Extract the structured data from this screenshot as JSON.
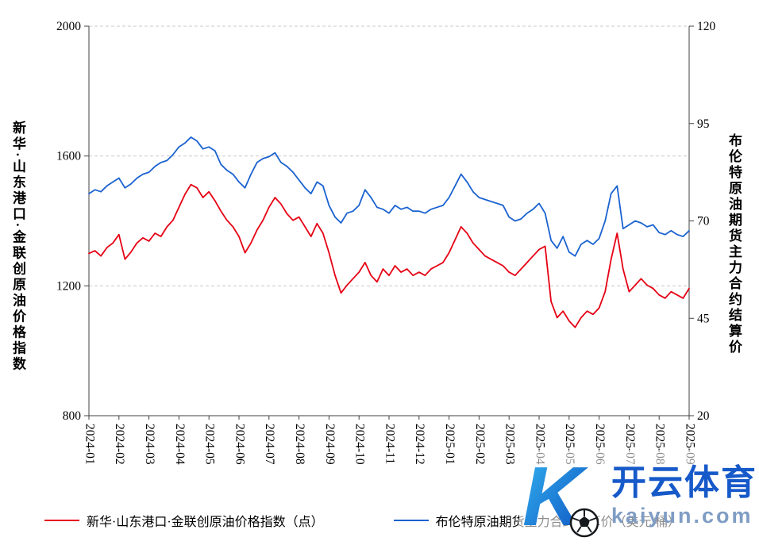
{
  "chart_data": {
    "type": "line",
    "title": "",
    "x_axis": {
      "labels": [
        "2024-01",
        "2024-02",
        "2024-03",
        "2024-04",
        "2024-05",
        "2024-06",
        "2024-07",
        "2024-08",
        "2024-09",
        "2024-10",
        "2024-11",
        "2024-12",
        "2025-01",
        "2025-02",
        "2025-03",
        "2025-04",
        "2025-05",
        "2025-06",
        "2025-07",
        "2025-08",
        "2025-09"
      ]
    },
    "left_axis": {
      "title": "新华·山东港口·金联创原油价格指数",
      "min": 800,
      "max": 2000,
      "ticks": [
        800,
        1200,
        1600,
        2000
      ]
    },
    "right_axis": {
      "title": "布伦特原油期货主力合约结算价",
      "min": 20,
      "max": 120,
      "ticks": [
        20,
        45,
        70,
        95,
        120
      ]
    },
    "grid_values_left": [
      1200,
      1600,
      2000
    ],
    "points_per_month": 5,
    "series": [
      {
        "name": "新华·山东港口·金联创原油价格指数（点）",
        "axis": "left",
        "color": "#e60014",
        "values": [
          1300,
          1308,
          1292,
          1318,
          1332,
          1358,
          1282,
          1304,
          1332,
          1348,
          1338,
          1362,
          1352,
          1382,
          1402,
          1442,
          1482,
          1512,
          1502,
          1472,
          1490,
          1462,
          1430,
          1402,
          1382,
          1352,
          1302,
          1332,
          1372,
          1402,
          1442,
          1472,
          1452,
          1422,
          1402,
          1412,
          1382,
          1352,
          1392,
          1362,
          1302,
          1232,
          1178,
          1202,
          1222,
          1242,
          1272,
          1232,
          1212,
          1252,
          1232,
          1262,
          1242,
          1252,
          1232,
          1242,
          1232,
          1252,
          1262,
          1272,
          1302,
          1342,
          1382,
          1362,
          1332,
          1312,
          1292,
          1282,
          1272,
          1262,
          1242,
          1232,
          1252,
          1272,
          1292,
          1312,
          1322,
          1152,
          1102,
          1122,
          1092,
          1072,
          1102,
          1122,
          1112,
          1132,
          1182,
          1282,
          1362,
          1252,
          1182,
          1202,
          1222,
          1202,
          1192,
          1172,
          1162,
          1182,
          1172,
          1162,
          1192
        ]
      },
      {
        "name": "布伦特原油期货主力合约结算价（美元/桶）",
        "axis": "right",
        "color": "#1a62d0",
        "values": [
          77,
          78,
          77.5,
          79,
          80,
          81,
          78.5,
          79.5,
          81,
          82,
          82.5,
          84,
          85,
          85.5,
          87,
          89,
          90,
          91.5,
          90.5,
          88.5,
          89,
          88,
          84.5,
          83,
          82,
          80,
          78.5,
          82,
          85,
          86,
          86.5,
          87.5,
          85,
          84,
          82.5,
          80.5,
          78.5,
          77,
          80,
          79,
          74,
          71,
          69.5,
          72,
          72.5,
          74,
          78,
          76,
          73.5,
          73,
          72,
          74,
          73,
          73.5,
          72.5,
          72.5,
          72,
          73,
          73.5,
          74,
          76,
          79,
          82,
          80,
          77.5,
          76,
          75.5,
          75,
          74.5,
          74,
          71,
          70,
          70.5,
          72,
          73,
          74.5,
          72,
          65,
          63,
          66,
          62,
          61,
          64,
          65,
          64,
          65.5,
          70,
          77,
          79,
          68,
          69,
          70,
          69.5,
          68.5,
          69,
          67,
          66.5,
          67.5,
          66.5,
          66,
          67.5
        ]
      }
    ]
  },
  "legend": {
    "items": [
      {
        "label": "新华·山东港口·金联创原油价格指数（点）",
        "color": "#e60014"
      },
      {
        "label": "布伦特原油期货主力合约结算价（美元/桶）",
        "color": "#1a62d0"
      }
    ]
  },
  "watermark": {
    "letter": "K",
    "brand": "开云体育",
    "domain": "kaiyun.com",
    "accent_color": "#1659c9"
  }
}
